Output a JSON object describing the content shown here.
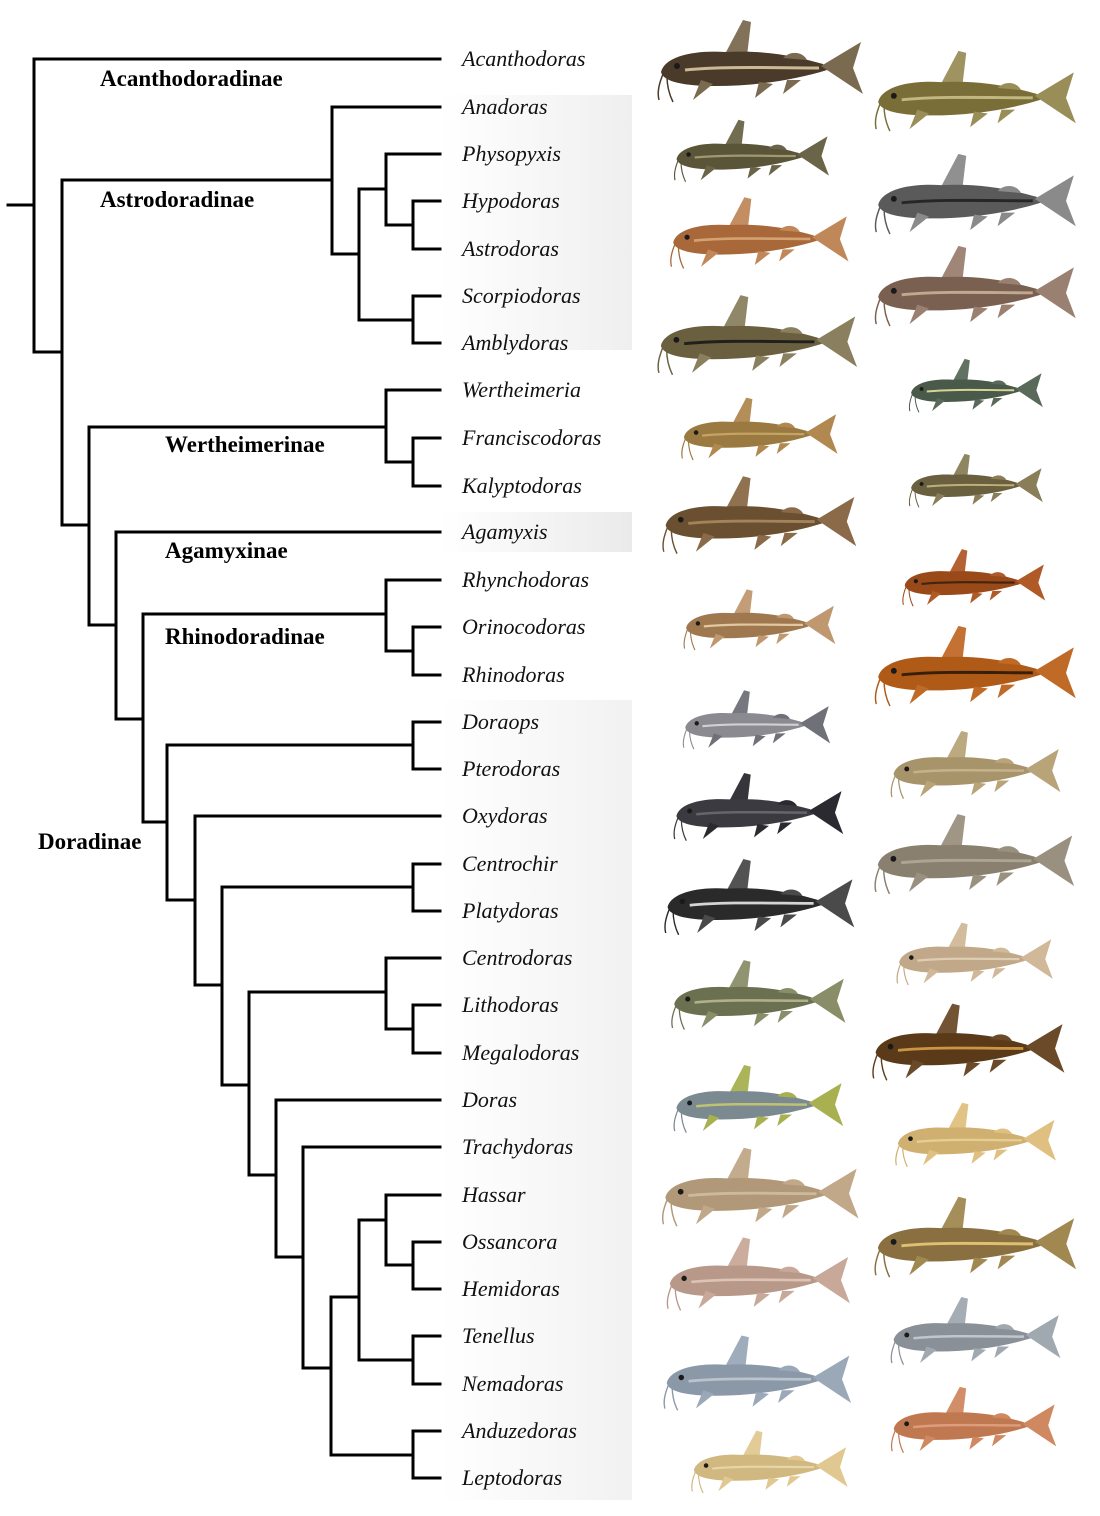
{
  "subfamilies": {
    "acanthodoradinae": "Acanthodoradinae",
    "astrodoradinae": "Astrodoradinae",
    "wertheimerinae": "Wertheimerinae",
    "agamyxinae": "Agamyxinae",
    "rhinodoradinae": "Rhinodoradinae",
    "doradinae": "Doradinae"
  },
  "genera": [
    "Acanthodoras",
    "Anadoras",
    "Physopyxis",
    "Hypodoras",
    "Astrodoras",
    "Scorpiodoras",
    "Amblydoras",
    "Wertheimeria",
    "Franciscodoras",
    "Kalyptodoras",
    "Agamyxis",
    "Rhynchodoras",
    "Orinocodoras",
    "Rhinodoras",
    "Doraops",
    "Pterodoras",
    "Oxydoras",
    "Centrochir",
    "Platydoras",
    "Centrodoras",
    "Lithodoras",
    "Megalodoras",
    "Doras",
    "Trachydoras",
    "Hassar",
    "Ossancora",
    "Hemidoras",
    "Tenellus",
    "Nemadoras",
    "Anduzedoras",
    "Leptodoras"
  ],
  "colors": {
    "branch": "#000000",
    "shade": "#ececec"
  },
  "fish_photos": [
    {
      "color": "#4a3a2a",
      "stripe": "#d8c8a0",
      "fin": "#7a6a50"
    },
    {
      "color": "#7a6e38",
      "stripe": "#c8c088",
      "fin": "#9a8e58"
    },
    {
      "color": "#5a5438",
      "stripe": "#a8a078",
      "fin": "#6a6448"
    },
    {
      "color": "#5a5a5a",
      "stripe": "#202020",
      "fin": "#8a8a8a"
    },
    {
      "color": "#a8683a",
      "stripe": "#d8a878",
      "fin": "#c08858"
    },
    {
      "color": "#7a6050",
      "stripe": "#c8b098",
      "fin": "#9a8070"
    },
    {
      "color": "#6a6040",
      "stripe": "#1a1a1a",
      "fin": "#8a8060"
    },
    {
      "color": "#4a5a4a",
      "stripe": "#e8e0a0",
      "fin": "#5a6a5a"
    },
    {
      "color": "#9a7a40",
      "stripe": "#c8a868",
      "fin": "#b08850"
    },
    {
      "color": "#6a6040",
      "stripe": "#c8b880",
      "fin": "#8a7e58"
    },
    {
      "color": "#6a5030",
      "stripe": "#a88860",
      "fin": "#8a6a48"
    },
    {
      "color": "#9a4a18",
      "stripe": "#3a2010",
      "fin": "#b05a28"
    },
    {
      "color": "#a07850",
      "stripe": "#e8d0a8",
      "fin": "#c09870"
    },
    {
      "color": "#b05a18",
      "stripe": "#2a1808",
      "fin": "#c06a28"
    },
    {
      "color": "#8a8a90",
      "stripe": "#d8d8dc",
      "fin": "#707078"
    },
    {
      "color": "#a8946a",
      "stripe": "#c8b490",
      "fin": "#b8a478"
    },
    {
      "color": "#3a3a40",
      "stripe": "#6a6a70",
      "fin": "#2a2a30"
    },
    {
      "color": "#8a8070",
      "stripe": "#b0a898",
      "fin": "#9a9080"
    },
    {
      "color": "#2a2a2a",
      "stripe": "#e8e8e8",
      "fin": "#4a4a4a"
    },
    {
      "color": "#c0a888",
      "stripe": "#e0d0b8",
      "fin": "#d0b898"
    },
    {
      "color": "#6a7050",
      "stripe": "#b8b890",
      "fin": "#8a8e68"
    },
    {
      "color": "#5a3a18",
      "stripe": "#d8a048",
      "fin": "#6a4a28"
    },
    {
      "color": "#7a8a90",
      "stripe": "#c8c870",
      "fin": "#a8b050"
    },
    {
      "color": "#d0b070",
      "stripe": "#e8d098",
      "fin": "#e0c080"
    },
    {
      "color": "#b09878",
      "stripe": "#d0bca0",
      "fin": "#c0a888"
    },
    {
      "color": "#8a7040",
      "stripe": "#e8c878",
      "fin": "#a08850"
    },
    {
      "color": "#b89888",
      "stripe": "#e0c8b8",
      "fin": "#c8a898"
    },
    {
      "color": "#8a9098",
      "stripe": "#c8ccd0",
      "fin": "#a0a8b0"
    },
    {
      "color": "#8a98a8",
      "stripe": "#c0c8d0",
      "fin": "#9aa8b8"
    },
    {
      "color": "#c07850",
      "stripe": "#e0a080",
      "fin": "#d08860"
    },
    {
      "color": "#d0b880",
      "stripe": "#e8d8a8",
      "fin": "#e0c890"
    }
  ]
}
